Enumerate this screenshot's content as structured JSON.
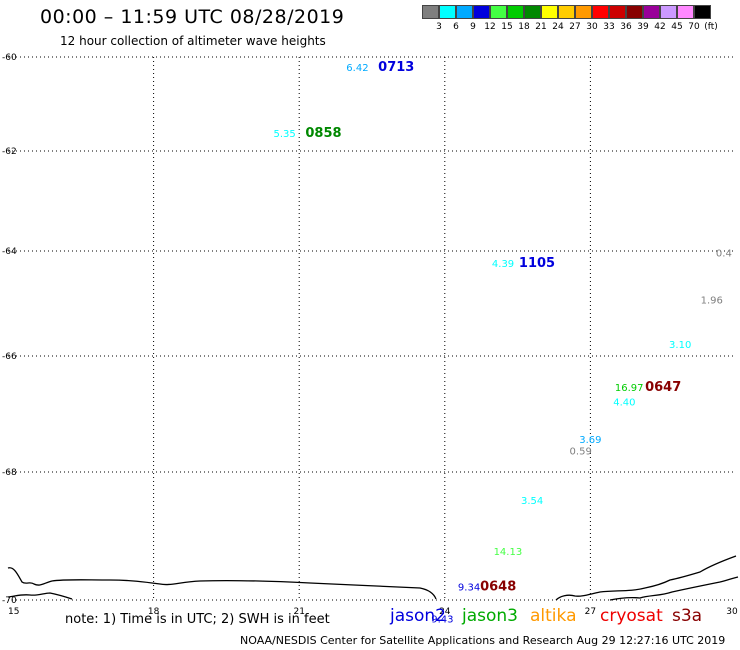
{
  "header": {
    "title": "00:00 – 11:59 UTC 08/28/2019",
    "subtitle": "12 hour collection of altimeter wave heights"
  },
  "scale": {
    "colors": [
      "#7f7f7f",
      "#00ffff",
      "#00aaff",
      "#0000dd",
      "#44ff44",
      "#00cc00",
      "#008800",
      "#ffff00",
      "#ffcc00",
      "#ff9900",
      "#ff0000",
      "#cc0000",
      "#880000",
      "#990099",
      "#cc99ff",
      "#ff88ff",
      "#000000"
    ],
    "labels": [
      "3",
      "6",
      "9",
      "12",
      "15",
      "18",
      "21",
      "24",
      "27",
      "30",
      "33",
      "36",
      "39",
      "42",
      "45",
      "70",
      "(ft)"
    ]
  },
  "map": {
    "lat_labels": [
      "-60",
      "-62",
      "-64",
      "-66",
      "-68",
      "-70"
    ],
    "lon_labels": [
      "15",
      "18",
      "21",
      "24",
      "27",
      "30"
    ],
    "observations": [
      {
        "text": "6.42",
        "color": "#00aaff",
        "lon": 22.2,
        "lat": -60.3
      },
      {
        "text": "5.35",
        "color": "#00ffff",
        "lon": 20.7,
        "lat": -61.7
      },
      {
        "text": "4.39",
        "color": "#00ffff",
        "lon": 25.2,
        "lat": -64.3
      },
      {
        "text": "0.4",
        "color": "#7f7f7f",
        "lon": 29.75,
        "lat": -64.1
      },
      {
        "text": "1.96",
        "color": "#7f7f7f",
        "lon": 29.5,
        "lat": -65.0
      },
      {
        "text": "3.10",
        "color": "#00ffff",
        "lon": 28.85,
        "lat": -65.85
      },
      {
        "text": "16.97",
        "color": "#00cc00",
        "lon": 27.8,
        "lat": -66.6
      },
      {
        "text": "4.40",
        "color": "#00ffff",
        "lon": 27.7,
        "lat": -66.85
      },
      {
        "text": "3.69",
        "color": "#00aaff",
        "lon": 27.0,
        "lat": -67.5
      },
      {
        "text": "0.59",
        "color": "#7f7f7f",
        "lon": 26.8,
        "lat": -67.7
      },
      {
        "text": "3.54",
        "color": "#00ffff",
        "lon": 25.8,
        "lat": -68.5
      },
      {
        "text": "14.13",
        "color": "#44ff44",
        "lon": 25.3,
        "lat": -69.3
      },
      {
        "text": "9.34",
        "color": "#0000dd",
        "lon": 24.5,
        "lat": -69.85
      },
      {
        "text": "9.43",
        "color": "#0000dd",
        "lon": 23.95,
        "lat": -70.35
      }
    ],
    "times": [
      {
        "text": "0713",
        "color": "#0000dd",
        "lon": 23.0,
        "lat": -60.3
      },
      {
        "text": "0858",
        "color": "#008800",
        "lon": 21.5,
        "lat": -61.7
      },
      {
        "text": "1105",
        "color": "#0000dd",
        "lon": 25.9,
        "lat": -64.3
      },
      {
        "text": "0647",
        "color": "#880000",
        "lon": 28.5,
        "lat": -66.6
      },
      {
        "text": "0648",
        "color": "#880000",
        "lon": 25.1,
        "lat": -69.85
      }
    ]
  },
  "note": "note: 1) Time is in UTC; 2) SWH is in feet",
  "legend": [
    {
      "name": "jason2",
      "color": "#0000dd"
    },
    {
      "name": "jason3",
      "color": "#00aa00"
    },
    {
      "name": "altika",
      "color": "#ff9900"
    },
    {
      "name": "cryosat",
      "color": "#ee0000"
    },
    {
      "name": "s3a",
      "color": "#880000"
    }
  ],
  "footer": "NOAA/NESDIS Center for Satellite Applications and Research    Aug 29 12:27:16 UTC 2019"
}
